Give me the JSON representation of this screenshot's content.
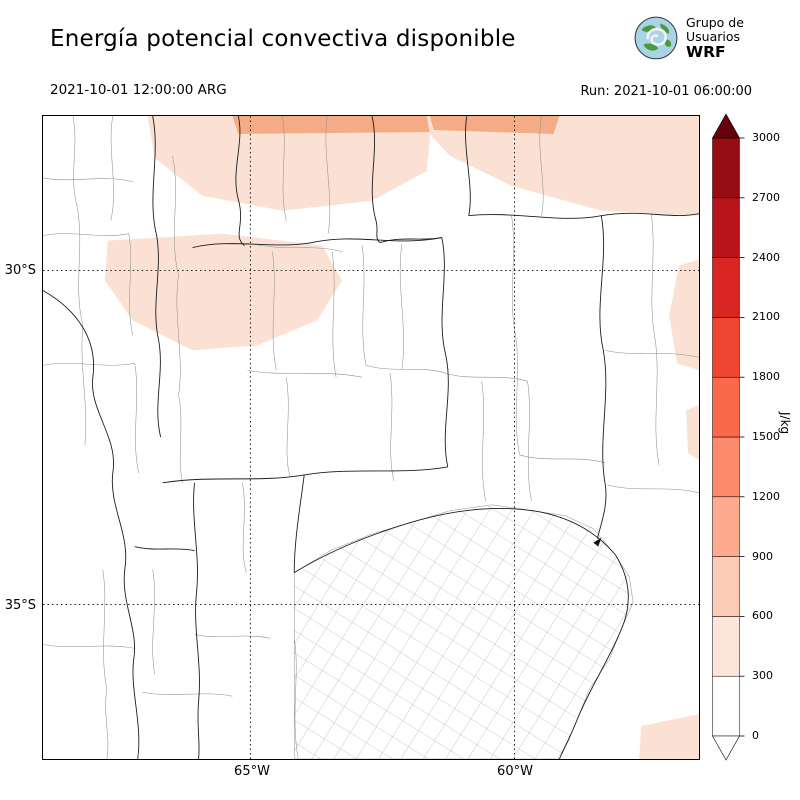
{
  "header": {
    "title": "Energía potencial convectiva disponible",
    "valid_time": "2021-10-01 12:00:00 ARG",
    "run_label": "Run: 2021-10-01 06:00:00",
    "logo": {
      "line1": "Grupo de",
      "line2": "Usuarios",
      "line3": "WRF"
    }
  },
  "map": {
    "y_ticks": [
      "30°S",
      "35°S"
    ],
    "x_ticks": [
      "65°W",
      "60°W"
    ]
  },
  "colorbar": {
    "label": "J/kg",
    "ticks": [
      0,
      300,
      600,
      900,
      1200,
      1500,
      1800,
      2100,
      2400,
      2700,
      3000
    ],
    "segment_colors": [
      "#ffffff",
      "#fee5d9",
      "#fccab5",
      "#fcab8f",
      "#fc8a6b",
      "#fb694a",
      "#ef4533",
      "#d92623",
      "#b81419",
      "#980c13"
    ],
    "over_color": "#67000d",
    "under_color": "#ffffff"
  },
  "colors": {
    "shade_light": "#fbe1d3",
    "shade_mid": "#f4ac87"
  }
}
